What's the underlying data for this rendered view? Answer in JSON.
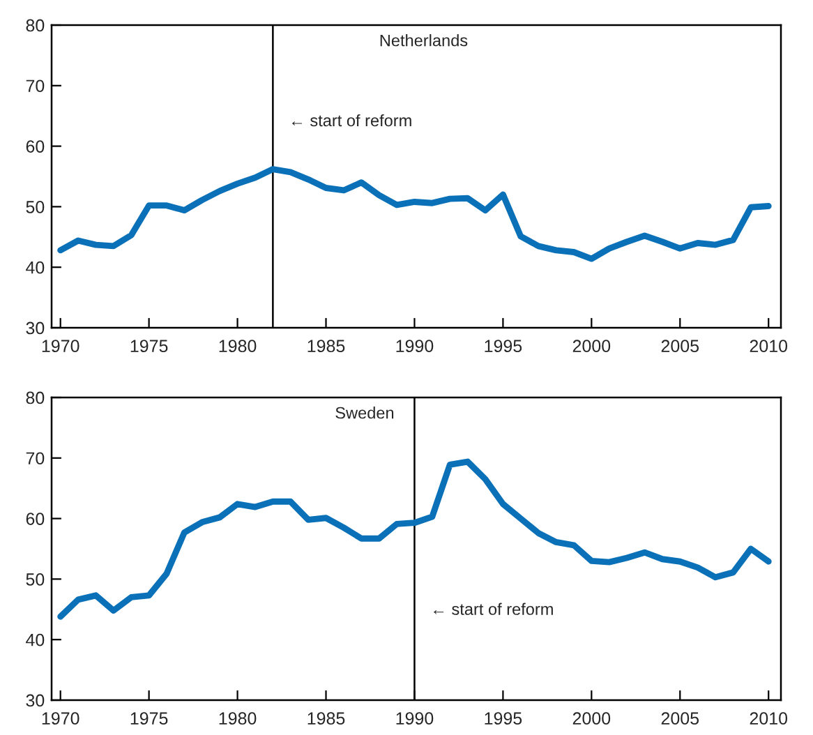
{
  "chart_data": [
    {
      "type": "line",
      "title": "Netherlands",
      "x": [
        1970,
        1971,
        1972,
        1973,
        1974,
        1975,
        1976,
        1977,
        1978,
        1979,
        1980,
        1981,
        1982,
        1983,
        1984,
        1985,
        1986,
        1987,
        1988,
        1989,
        1990,
        1991,
        1992,
        1993,
        1994,
        1995,
        1996,
        1997,
        1998,
        1999,
        2000,
        2001,
        2002,
        2003,
        2004,
        2005,
        2006,
        2007,
        2008,
        2009,
        2010
      ],
      "series": [
        {
          "color": "#0a70b8",
          "values": [
            42.8,
            44.4,
            43.7,
            43.5,
            45.3,
            50.2,
            50.2,
            49.4,
            51.1,
            52.6,
            53.8,
            54.8,
            56.2,
            55.7,
            54.5,
            53.1,
            52.7,
            54.0,
            51.9,
            50.3,
            50.8,
            50.6,
            51.3,
            51.4,
            49.4,
            52.0,
            45.1,
            43.5,
            42.8,
            42.5,
            41.4,
            43.1,
            44.2,
            45.2,
            44.2,
            43.1,
            44.0,
            43.7,
            44.5,
            49.9,
            50.1
          ]
        }
      ],
      "xlim": [
        1969.5,
        2010.7
      ],
      "xticks": [
        1970,
        1975,
        1980,
        1985,
        1990,
        1995,
        2000,
        2005,
        2010
      ],
      "ylim": [
        30,
        80
      ],
      "yticks": [
        30,
        40,
        50,
        60,
        70,
        80
      ],
      "grid": false,
      "legend": false,
      "marker": "none",
      "line_style": "solid",
      "ref_lines": [
        {
          "axis": "x",
          "value": 1982,
          "color": "#000000",
          "label": "← start of reform"
        }
      ]
    },
    {
      "type": "line",
      "title": "Sweden",
      "x": [
        1970,
        1971,
        1972,
        1973,
        1974,
        1975,
        1976,
        1977,
        1978,
        1979,
        1980,
        1981,
        1982,
        1983,
        1984,
        1985,
        1986,
        1987,
        1988,
        1989,
        1990,
        1991,
        1992,
        1993,
        1994,
        1995,
        1996,
        1997,
        1998,
        1999,
        2000,
        2001,
        2002,
        2003,
        2004,
        2005,
        2006,
        2007,
        2008,
        2009,
        2010
      ],
      "series": [
        {
          "color": "#0a70b8",
          "values": [
            43.8,
            46.6,
            47.3,
            44.8,
            47.0,
            47.3,
            50.9,
            57.7,
            59.4,
            60.2,
            62.4,
            61.9,
            62.8,
            62.8,
            59.8,
            60.1,
            58.5,
            56.7,
            56.7,
            59.1,
            59.3,
            60.3,
            68.9,
            69.4,
            66.5,
            62.4,
            60.0,
            57.6,
            56.1,
            55.6,
            53.0,
            52.8,
            53.5,
            54.4,
            53.3,
            52.9,
            51.9,
            50.3,
            51.1,
            55.0,
            52.9
          ]
        }
      ],
      "xlim": [
        1969.5,
        2010.7
      ],
      "xticks": [
        1970,
        1975,
        1980,
        1985,
        1990,
        1995,
        2000,
        2005,
        2010
      ],
      "ylim": [
        30,
        80
      ],
      "yticks": [
        30,
        40,
        50,
        60,
        70,
        80
      ],
      "grid": false,
      "legend": false,
      "marker": "none",
      "line_style": "solid",
      "ref_lines": [
        {
          "axis": "x",
          "value": 1990,
          "color": "#000000",
          "label": "← start of reform"
        }
      ]
    }
  ]
}
